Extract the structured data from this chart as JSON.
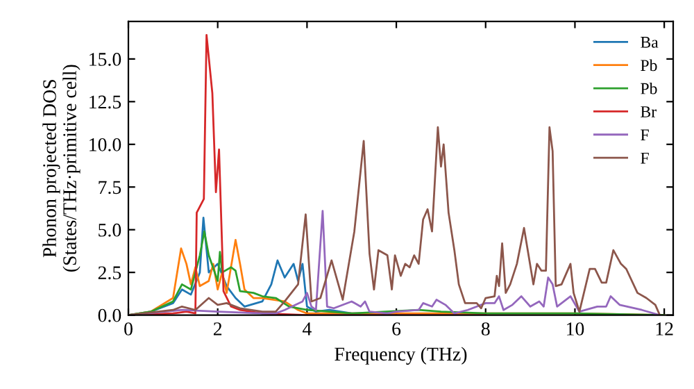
{
  "chart_data": {
    "type": "line",
    "xlabel": "Frequency (THz)",
    "ylabel": "Phonon projected DOS\n(States/THz·primitive cell)",
    "xlim": [
      0,
      12.2
    ],
    "ylim": [
      0,
      17.2
    ],
    "xticks": [
      0,
      2,
      4,
      6,
      8,
      10,
      12
    ],
    "yticks": [
      {
        "value": 0,
        "label": "0.0"
      },
      {
        "value": 2.5,
        "label": "2.5"
      },
      {
        "value": 5,
        "label": "5.0"
      },
      {
        "value": 7.5,
        "label": "7.5"
      },
      {
        "value": 10,
        "label": "10.0"
      },
      {
        "value": 12.5,
        "label": "12.5"
      },
      {
        "value": 15,
        "label": "15.0"
      }
    ],
    "grid": false,
    "legend": "top right",
    "marker": "none",
    "line_style": "solid",
    "series": [
      {
        "name": "Ba",
        "color": "#1f77b4",
        "x": [
          0,
          0.5,
          1.0,
          1.2,
          1.4,
          1.6,
          1.68,
          1.8,
          2.0,
          2.2,
          2.4,
          2.6,
          3.0,
          3.2,
          3.34,
          3.5,
          3.7,
          3.8,
          3.9,
          4.0,
          4.2,
          4.5,
          5.0,
          6
        ],
        "values": [
          0,
          0.2,
          0.7,
          1.5,
          1.2,
          2.5,
          5.7,
          2.5,
          3.0,
          1.7,
          1.0,
          0.5,
          0.8,
          1.8,
          3.2,
          2.2,
          3.0,
          2.0,
          3.0,
          0.5,
          0.2,
          0.3,
          0.1,
          0.1
        ]
      },
      {
        "name": "Pb",
        "color": "#ff7f0e",
        "x": [
          0,
          0.5,
          1.0,
          1.18,
          1.3,
          1.4,
          1.5,
          1.6,
          1.8,
          1.9,
          2.0,
          2.1,
          2.2,
          2.4,
          2.5,
          2.6,
          2.8,
          3.0,
          3.5,
          3.8,
          4.0,
          6,
          8,
          10,
          12
        ],
        "values": [
          0,
          0.2,
          1.0,
          3.9,
          3.0,
          1.8,
          2.8,
          1.7,
          2.0,
          3.0,
          1.5,
          2.5,
          1.3,
          4.4,
          3.0,
          1.5,
          1.0,
          1.0,
          0.8,
          0.3,
          0.1,
          0.1,
          0.1,
          0.1,
          0
        ]
      },
      {
        "name": "Pb",
        "color": "#2ca02c",
        "x": [
          0,
          0.5,
          1.0,
          1.2,
          1.4,
          1.6,
          1.7,
          1.8,
          2.0,
          2.05,
          2.1,
          2.3,
          2.4,
          2.5,
          2.8,
          3.0,
          3.3,
          3.6,
          4.0,
          4.5,
          5.0,
          6.5,
          7.0,
          8,
          10,
          12
        ],
        "values": [
          0,
          0.2,
          0.8,
          1.8,
          1.5,
          3.5,
          4.9,
          3.5,
          2.0,
          3.7,
          2.5,
          2.8,
          2.6,
          1.4,
          1.3,
          1.1,
          1.0,
          0.5,
          0.3,
          0.2,
          0.1,
          0.3,
          0.2,
          0.1,
          0.1,
          0
        ]
      },
      {
        "name": "Br",
        "color": "#d62728",
        "x": [
          0,
          1.0,
          1.3,
          1.5,
          1.53,
          1.69,
          1.75,
          1.88,
          1.96,
          2.03,
          2.13,
          2.3,
          2.5,
          3.0,
          4,
          6,
          8
        ],
        "values": [
          0,
          0.1,
          0.2,
          0.1,
          6.0,
          6.8,
          16.4,
          13.0,
          7.2,
          9.7,
          1.4,
          0.5,
          0.3,
          0.1,
          0,
          0,
          0
        ]
      },
      {
        "name": "F",
        "color": "#9467bd",
        "x": [
          0,
          1.2,
          2.0,
          3.0,
          3.3,
          3.5,
          3.9,
          4.0,
          4.1,
          4.2,
          4.35,
          4.45,
          4.6,
          5.0,
          5.2,
          5.3,
          5.4,
          5.8,
          6.0,
          6.5,
          6.6,
          6.8,
          6.9,
          7.1,
          7.3,
          7.6,
          8.0,
          8.2,
          8.3,
          8.4,
          8.6,
          8.8,
          9.0,
          9.2,
          9.3,
          9.4,
          9.5,
          9.6,
          9.9,
          10.1,
          10.5,
          10.7,
          10.8,
          11.0,
          11.5,
          11.9
        ],
        "values": [
          0,
          0.3,
          0.2,
          0.1,
          0.1,
          0.3,
          0.8,
          1.3,
          0.5,
          0.3,
          6.1,
          0.5,
          0.4,
          0.8,
          0.5,
          0.8,
          0.2,
          0.1,
          0.2,
          0.3,
          0.7,
          0.5,
          0.9,
          0.6,
          0.1,
          0.3,
          0.7,
          0.7,
          1.1,
          0.3,
          0.6,
          1.1,
          0.5,
          0.8,
          0.5,
          2.2,
          1.8,
          0.5,
          1.1,
          0.2,
          0.5,
          0.5,
          1.1,
          0.6,
          0.3,
          0
        ]
      },
      {
        "name": "F",
        "color": "#8c564b",
        "x": [
          0,
          1.0,
          1.2,
          1.5,
          1.8,
          2.0,
          2.2,
          2.5,
          3.0,
          3.3,
          3.5,
          3.8,
          3.97,
          4.1,
          4.3,
          4.55,
          4.8,
          5.06,
          5.27,
          5.4,
          5.5,
          5.6,
          5.8,
          5.9,
          5.97,
          6.1,
          6.2,
          6.3,
          6.4,
          6.5,
          6.6,
          6.7,
          6.8,
          6.93,
          7.0,
          7.06,
          7.17,
          7.3,
          7.4,
          7.54,
          7.8,
          7.9,
          8.0,
          8.2,
          8.25,
          8.3,
          8.37,
          8.45,
          8.55,
          8.7,
          8.86,
          9.07,
          9.15,
          9.25,
          9.35,
          9.43,
          9.5,
          9.57,
          9.7,
          9.9,
          9.97,
          10.1,
          10.33,
          10.45,
          10.6,
          10.7,
          10.86,
          11.03,
          11.15,
          11.4,
          11.6,
          11.8,
          11.9
        ],
        "values": [
          0,
          0.3,
          0.5,
          0.3,
          1.0,
          0.6,
          0.7,
          0.4,
          0.2,
          0.2,
          0.8,
          1.8,
          5.9,
          0.8,
          1.0,
          3.2,
          0.9,
          4.9,
          10.2,
          3.6,
          1.5,
          3.8,
          3.5,
          1.5,
          3.5,
          2.3,
          3.0,
          2.8,
          3.5,
          3.0,
          5.6,
          6.2,
          4.9,
          11.0,
          8.7,
          10.0,
          6.0,
          3.8,
          1.8,
          0.7,
          0.7,
          0.4,
          1.0,
          1.1,
          2.3,
          1.7,
          4.2,
          1.3,
          1.8,
          3.0,
          5.1,
          1.8,
          3.0,
          2.6,
          2.6,
          11.0,
          9.6,
          1.7,
          1.8,
          3.0,
          1.3,
          0.2,
          2.7,
          2.7,
          1.9,
          1.9,
          3.8,
          3.0,
          2.7,
          1.3,
          1.0,
          0.6,
          0
        ]
      }
    ]
  }
}
